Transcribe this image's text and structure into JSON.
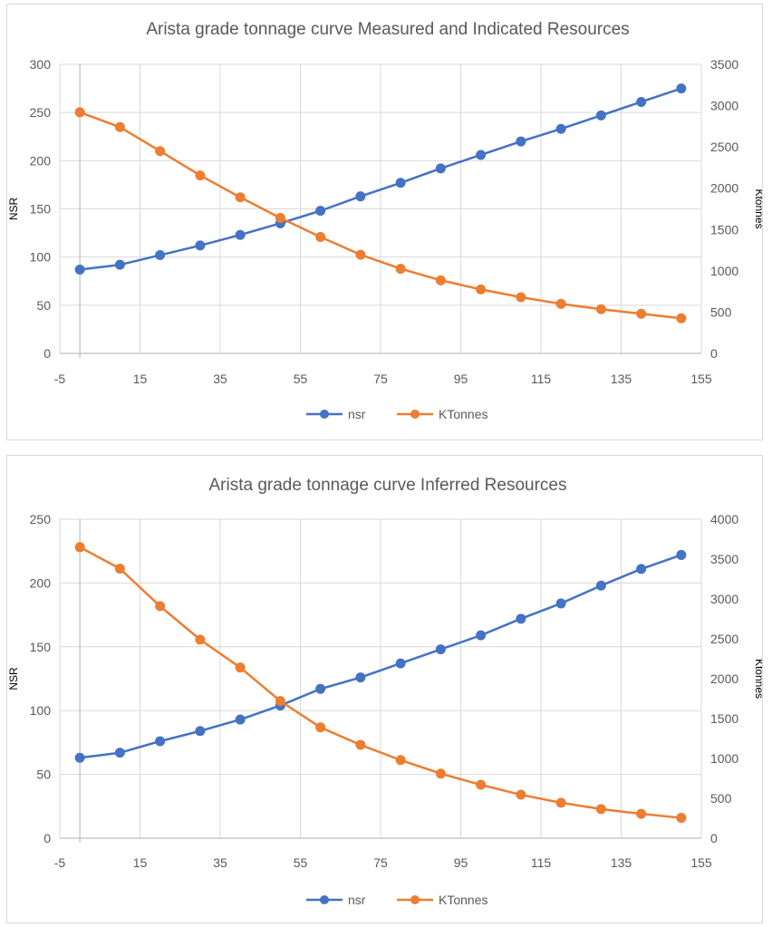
{
  "colors": {
    "nsr": "#4472C4",
    "ktonnes": "#ED7D31",
    "grid": "#d9d9d9",
    "text": "#595959"
  },
  "chart_data": [
    {
      "type": "line",
      "title": "Arista grade tonnage curve Measured and Indicated Resources",
      "xlabel": "",
      "ylabel": "NSR",
      "y2label": "Ktonnes",
      "xlim": [
        -5,
        155
      ],
      "xticks": [
        "-5",
        "15",
        "35",
        "55",
        "75",
        "95",
        "115",
        "135",
        "155"
      ],
      "ylim": [
        0,
        300
      ],
      "yticks": [
        "0",
        "50",
        "100",
        "150",
        "200",
        "250",
        "300"
      ],
      "y2lim": [
        0,
        3500
      ],
      "y2ticks": [
        "0",
        "500",
        "1000",
        "1500",
        "2000",
        "2500",
        "3000",
        "3500"
      ],
      "x": [
        0,
        10,
        20,
        30,
        40,
        50,
        60,
        70,
        80,
        90,
        100,
        110,
        120,
        130,
        140,
        150
      ],
      "series": [
        {
          "name": "nsr",
          "axis": "left",
          "values": [
            87,
            92,
            102,
            112,
            123,
            135,
            148,
            163,
            177,
            192,
            206,
            220,
            233,
            247,
            261,
            275
          ]
        },
        {
          "name": "KTonnes",
          "axis": "right",
          "values": [
            2920,
            2740,
            2450,
            2155,
            1890,
            1640,
            1410,
            1195,
            1025,
            885,
            775,
            680,
            600,
            535,
            480,
            425
          ]
        }
      ],
      "legend": [
        "nsr",
        "KTonnes"
      ],
      "legend_position": "bottom",
      "grid": true
    },
    {
      "type": "line",
      "title": "Arista grade tonnage curve Inferred Resources",
      "xlabel": "",
      "ylabel": "NSR",
      "y2label": "Ktonnes",
      "xlim": [
        -5,
        155
      ],
      "xticks": [
        "-5",
        "15",
        "35",
        "55",
        "75",
        "95",
        "115",
        "135",
        "155"
      ],
      "ylim": [
        0,
        250
      ],
      "yticks": [
        "0",
        "50",
        "100",
        "150",
        "200",
        "250"
      ],
      "y2lim": [
        0,
        4000
      ],
      "y2ticks": [
        "0",
        "500",
        "1000",
        "1500",
        "2000",
        "2500",
        "3000",
        "3500",
        "4000"
      ],
      "x": [
        0,
        10,
        20,
        30,
        40,
        50,
        60,
        70,
        80,
        90,
        100,
        110,
        120,
        130,
        140,
        150
      ],
      "series": [
        {
          "name": "nsr",
          "axis": "left",
          "values": [
            63,
            67,
            76,
            84,
            93,
            104,
            117,
            126,
            137,
            148,
            159,
            172,
            184,
            198,
            211,
            222
          ]
        },
        {
          "name": "KTonnes",
          "axis": "right",
          "values": [
            3650,
            3380,
            2910,
            2490,
            2140,
            1720,
            1390,
            1170,
            980,
            810,
            670,
            545,
            445,
            365,
            305,
            255
          ]
        }
      ],
      "legend": [
        "nsr",
        "KTonnes"
      ],
      "legend_position": "bottom",
      "grid": true
    }
  ]
}
